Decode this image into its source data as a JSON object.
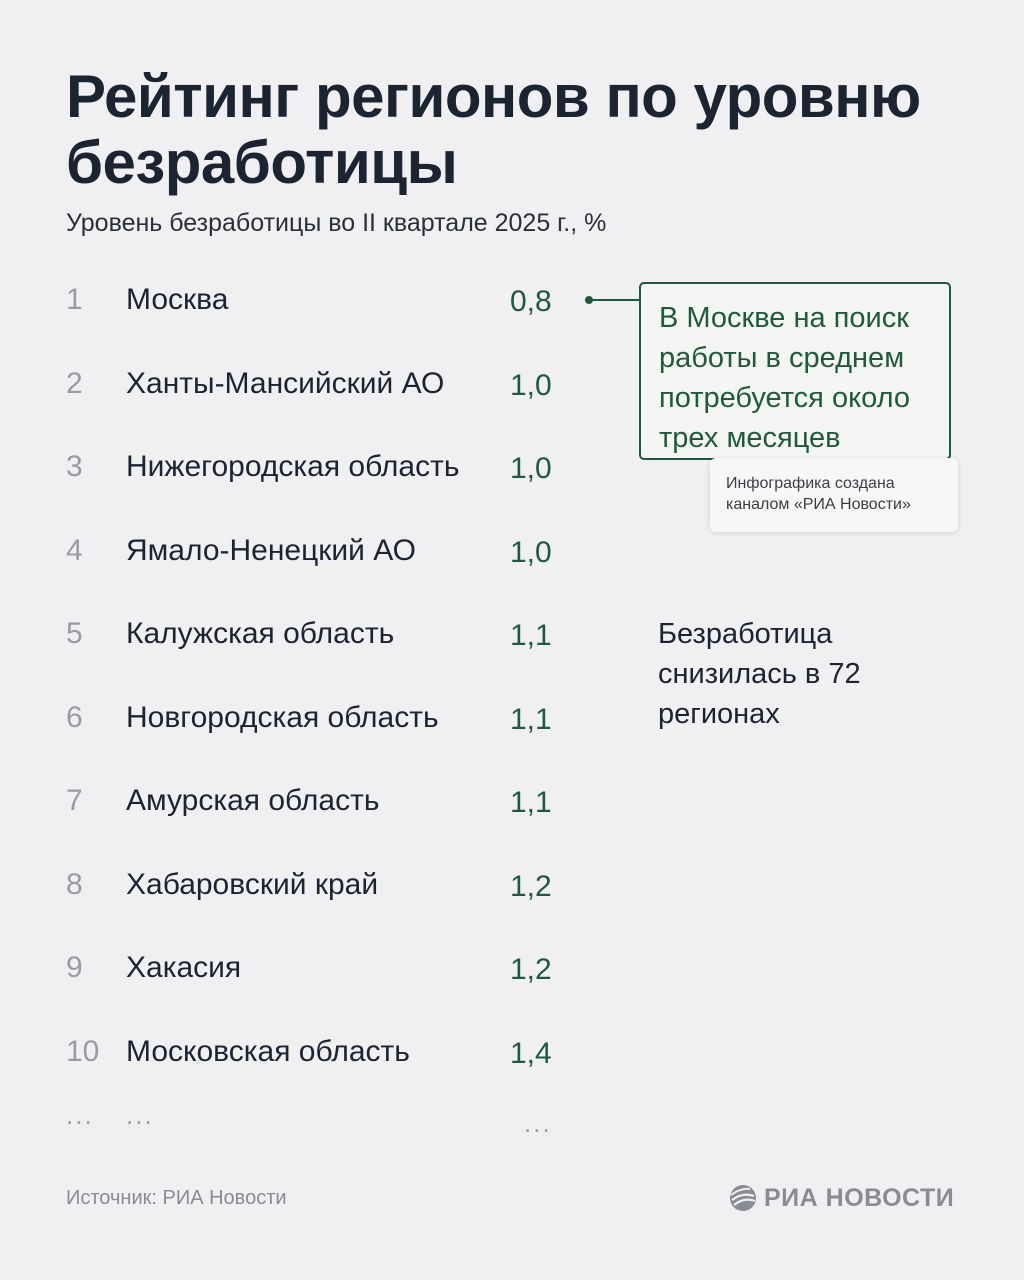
{
  "title": "Рейтинг регионов по уровню безработицы",
  "subtitle": "Уровень безработицы во II квартале 2025 г., %",
  "chart_data": {
    "type": "table",
    "title": "Рейтинг регионов по уровню безработицы",
    "subtitle": "Уровень безработицы во II квартале 2025 г., %",
    "columns": [
      "rank",
      "region",
      "value"
    ],
    "rows": [
      {
        "rank": "1",
        "region": "Москва",
        "value": 0.8,
        "value_label": "0,8"
      },
      {
        "rank": "2",
        "region": "Ханты-Мансийский АО",
        "value": 1.0,
        "value_label": "1,0"
      },
      {
        "rank": "3",
        "region": "Нижегородская область",
        "value": 1.0,
        "value_label": "1,0"
      },
      {
        "rank": "4",
        "region": "Ямало-Ненецкий АО",
        "value": 1.0,
        "value_label": "1,0"
      },
      {
        "rank": "5",
        "region": "Калужская область",
        "value": 1.1,
        "value_label": "1,1"
      },
      {
        "rank": "6",
        "region": "Новгородская область",
        "value": 1.1,
        "value_label": "1,1"
      },
      {
        "rank": "7",
        "region": "Амурская область",
        "value": 1.1,
        "value_label": "1,1"
      },
      {
        "rank": "8",
        "region": "Хабаровский край",
        "value": 1.2,
        "value_label": "1,2"
      },
      {
        "rank": "9",
        "region": "Хакасия",
        "value": 1.2,
        "value_label": "1,2"
      },
      {
        "rank": "10",
        "region": "Московская область",
        "value": 1.4,
        "value_label": "1,4"
      }
    ],
    "continuation": {
      "rank": "...",
      "region": "...",
      "value": "..."
    },
    "annotations": {
      "moscow_callout": "В Москве на поиск работы в среднем потребуется около трех месяцев",
      "credit": "Инфографика создана каналом «РИА Новости»",
      "note": "Безработица снизилась в 72 регионах"
    }
  },
  "footer": {
    "source": "Источник: РИА Новости",
    "logo": "РИА НОВОСТИ"
  },
  "colors": {
    "background": "#f0f0f2",
    "accent": "#1f5a3e",
    "text": "#1c2331",
    "muted": "#9a9ca3"
  }
}
